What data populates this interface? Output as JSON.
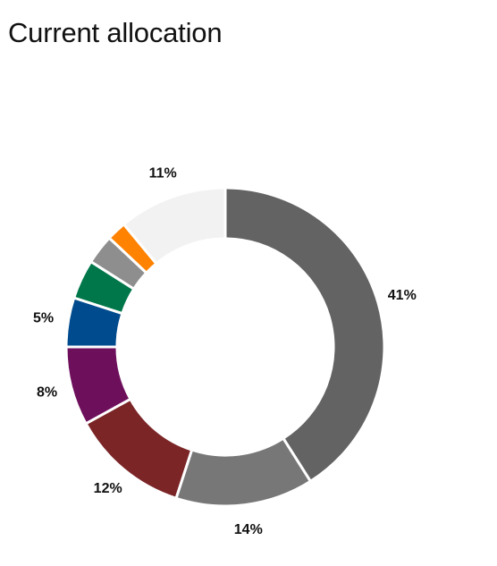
{
  "page": {
    "title": "Current allocation"
  },
  "chart_data": {
    "type": "pie",
    "variant": "donut",
    "title": "Current allocation",
    "start_angle_deg": 0,
    "direction": "clockwise",
    "hole_ratio": 0.68,
    "slices": [
      {
        "value": 41,
        "label": "41%",
        "color": "#636363",
        "show_label": true
      },
      {
        "value": 14,
        "label": "14%",
        "color": "#777777",
        "show_label": true
      },
      {
        "value": 12,
        "label": "12%",
        "color": "#7b2527",
        "show_label": true
      },
      {
        "value": 8,
        "label": "8%",
        "color": "#6e0f5c",
        "show_label": true
      },
      {
        "value": 5,
        "label": "5%",
        "color": "#004b8d",
        "show_label": true
      },
      {
        "value": 4,
        "label": "",
        "color": "#00774a",
        "show_label": false
      },
      {
        "value": 3,
        "label": "",
        "color": "#8e8e8e",
        "show_label": false
      },
      {
        "value": 2,
        "label": "",
        "color": "#ff8200",
        "show_label": false
      },
      {
        "value": 11,
        "label": "11%",
        "color": "#f2f2f2",
        "show_label": true
      }
    ]
  }
}
